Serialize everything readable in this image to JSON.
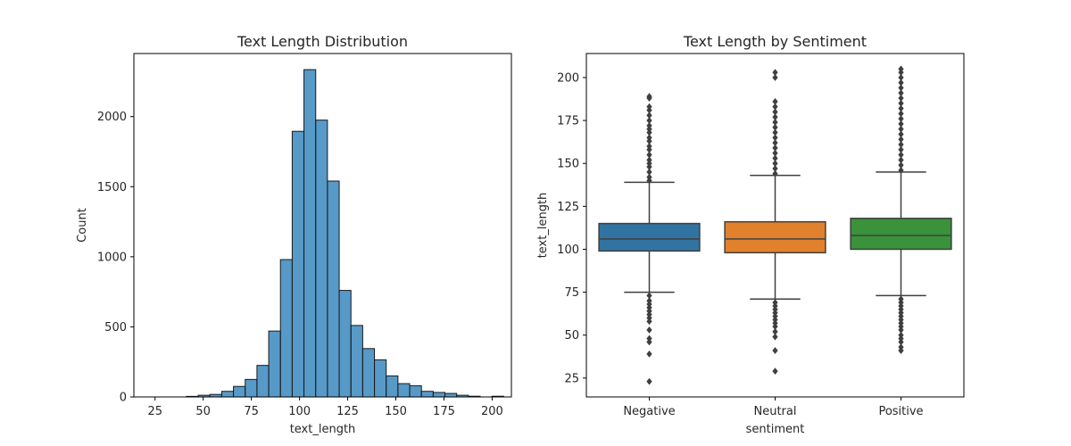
{
  "chart_data": [
    {
      "type": "histogram",
      "title": "Text Length Distribution",
      "xlabel": "text_length",
      "ylabel": "Count",
      "xlim": [
        14,
        210
      ],
      "ylim": [
        0,
        2450
      ],
      "xticks": [
        25,
        50,
        75,
        100,
        125,
        150,
        175,
        200
      ],
      "yticks": [
        0,
        500,
        1000,
        1500,
        2000
      ],
      "color": "#1f77b4",
      "bin_width": 6.1,
      "bins": [
        {
          "x": 23.0,
          "count": 0
        },
        {
          "x": 29.1,
          "count": 0
        },
        {
          "x": 35.2,
          "count": 0
        },
        {
          "x": 41.3,
          "count": 4
        },
        {
          "x": 47.4,
          "count": 12
        },
        {
          "x": 53.5,
          "count": 18
        },
        {
          "x": 59.6,
          "count": 40
        },
        {
          "x": 65.7,
          "count": 75
        },
        {
          "x": 71.8,
          "count": 125
        },
        {
          "x": 77.9,
          "count": 225
        },
        {
          "x": 84.0,
          "count": 470
        },
        {
          "x": 90.1,
          "count": 980
        },
        {
          "x": 96.2,
          "count": 1895
        },
        {
          "x": 102.3,
          "count": 2335
        },
        {
          "x": 108.4,
          "count": 1975
        },
        {
          "x": 114.5,
          "count": 1540
        },
        {
          "x": 120.6,
          "count": 760
        },
        {
          "x": 126.7,
          "count": 510
        },
        {
          "x": 132.8,
          "count": 345
        },
        {
          "x": 138.9,
          "count": 265
        },
        {
          "x": 145.0,
          "count": 150
        },
        {
          "x": 151.1,
          "count": 95
        },
        {
          "x": 157.2,
          "count": 80
        },
        {
          "x": 163.3,
          "count": 40
        },
        {
          "x": 169.4,
          "count": 32
        },
        {
          "x": 175.5,
          "count": 25
        },
        {
          "x": 181.6,
          "count": 12
        },
        {
          "x": 187.7,
          "count": 5
        },
        {
          "x": 193.8,
          "count": 0
        },
        {
          "x": 199.9,
          "count": 5
        }
      ]
    },
    {
      "type": "box",
      "title": "Text Length by Sentiment",
      "xlabel": "sentiment",
      "ylabel": "text_length",
      "ylim": [
        14,
        214
      ],
      "yticks": [
        25,
        50,
        75,
        100,
        125,
        150,
        175,
        200
      ],
      "categories": [
        "Negative",
        "Neutral",
        "Positive"
      ],
      "boxes": [
        {
          "name": "Negative",
          "color": "#3274a1",
          "whisker_low": 75,
          "q1": 99,
          "median": 106,
          "q3": 115,
          "whisker_high": 139,
          "outliers_high": [
            140,
            142,
            145,
            148,
            150,
            152,
            155,
            158,
            160,
            163,
            165,
            168,
            170,
            172,
            175,
            178,
            181,
            183,
            188,
            189
          ],
          "outliers_low": [
            73,
            70,
            68,
            66,
            64,
            62,
            60,
            58,
            53,
            48,
            46,
            39,
            23
          ]
        },
        {
          "name": "Neutral",
          "color": "#e1812c",
          "whisker_low": 71,
          "q1": 98,
          "median": 106,
          "q3": 116,
          "whisker_high": 143,
          "outliers_high": [
            144,
            147,
            150,
            153,
            156,
            159,
            162,
            165,
            168,
            171,
            174,
            177,
            180,
            183,
            186,
            200,
            203
          ],
          "outliers_low": [
            69,
            67,
            65,
            63,
            61,
            59,
            57,
            55,
            52,
            49,
            41,
            29
          ]
        },
        {
          "name": "Positive",
          "color": "#3a923a",
          "whisker_low": 73,
          "q1": 100,
          "median": 108,
          "q3": 118,
          "whisker_high": 145,
          "outliers_high": [
            146,
            149,
            152,
            155,
            158,
            161,
            164,
            167,
            170,
            173,
            176,
            179,
            182,
            185,
            188,
            191,
            194,
            197,
            200,
            203,
            205
          ],
          "outliers_low": [
            71,
            69,
            67,
            65,
            63,
            61,
            59,
            57,
            55,
            53,
            50,
            48,
            46,
            43,
            41
          ]
        }
      ]
    }
  ]
}
